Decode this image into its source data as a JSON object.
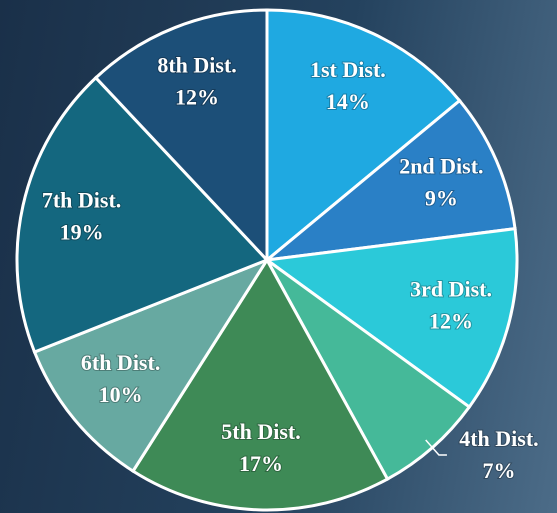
{
  "chart_data": {
    "type": "pie",
    "categories": [
      "1st Dist.",
      "2nd Dist.",
      "3rd Dist.",
      "4th Dist.",
      "5th Dist.",
      "6th Dist.",
      "7th Dist.",
      "8th Dist."
    ],
    "values": [
      14,
      9,
      12,
      7,
      17,
      10,
      19,
      12
    ],
    "colors": [
      "#1fa9e1",
      "#2a80c6",
      "#2bc9d9",
      "#45b999",
      "#3e8a56",
      "#67a9a1",
      "#14677f",
      "#1c4f78"
    ]
  }
}
